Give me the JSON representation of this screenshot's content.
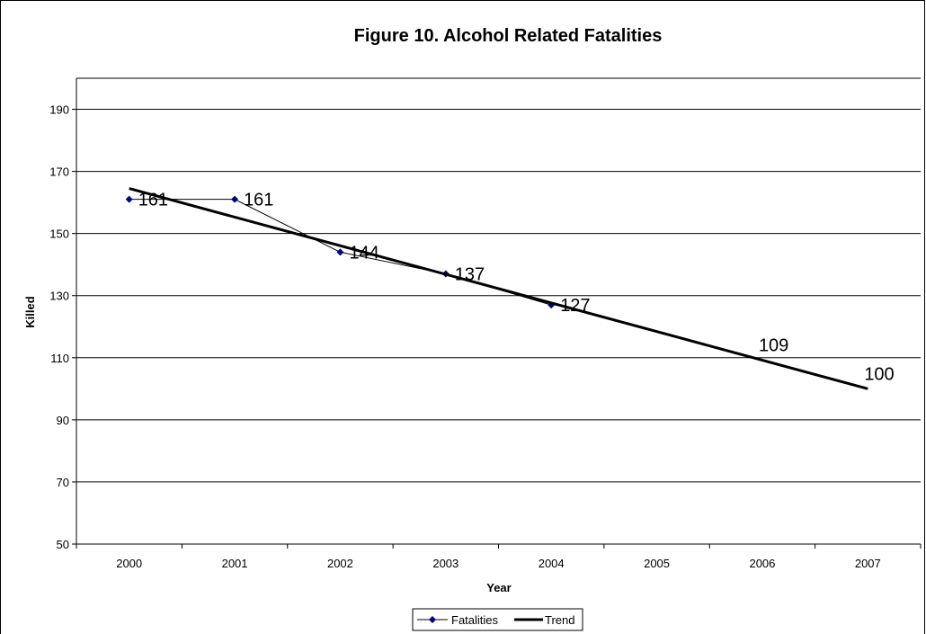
{
  "chart_data": {
    "type": "line",
    "title": "Figure 10. Alcohol Related Fatalities",
    "xlabel": "Year",
    "ylabel": "Killed",
    "categories": [
      "2000",
      "2001",
      "2002",
      "2003",
      "2004",
      "2005",
      "2006",
      "2007"
    ],
    "ylim": [
      50,
      200
    ],
    "yticks": [
      50,
      70,
      90,
      110,
      130,
      150,
      170,
      190
    ],
    "grid": true,
    "legend_position": "bottom",
    "series": [
      {
        "name": "Fatalities",
        "x": [
          "2000",
          "2001",
          "2002",
          "2003",
          "2004"
        ],
        "values": [
          161,
          161,
          144,
          137,
          127
        ],
        "labels": [
          "161",
          "161",
          "144",
          "137",
          "127"
        ],
        "color": "#000080",
        "marker": "diamond"
      },
      {
        "name": "Trend",
        "x": [
          "2000",
          "2007"
        ],
        "values": [
          164.5,
          100
        ],
        "color": "#000000",
        "marker": "none"
      }
    ],
    "annotations": [
      {
        "x": "2006",
        "text": "109"
      },
      {
        "x": "2007",
        "text": "100"
      }
    ]
  }
}
